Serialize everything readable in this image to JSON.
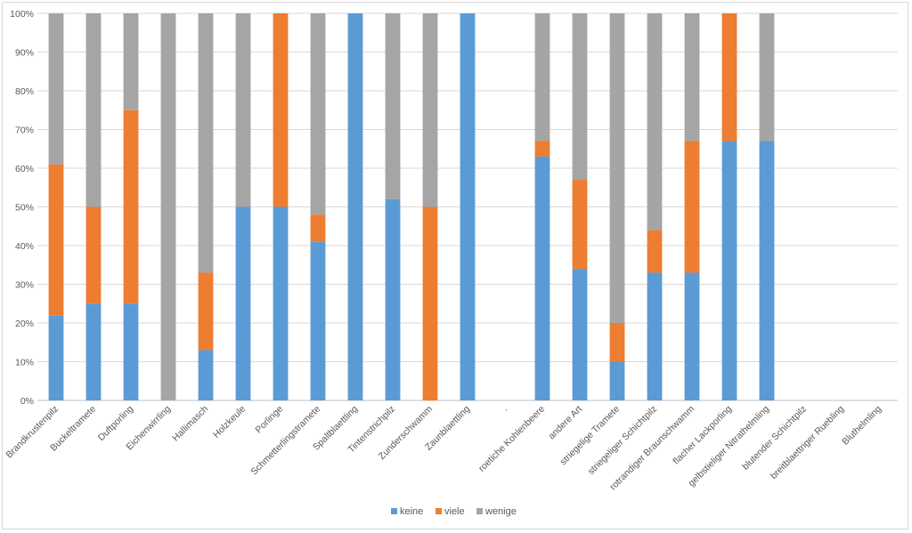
{
  "chart_data": {
    "type": "bar",
    "stacked": "percent",
    "categories": [
      "Brandkrustenpilz",
      "Buckeltramete",
      "Duftporling",
      "Eichenwirrling",
      "Hallimasch",
      "Holzkeule",
      "Porlinge",
      "Schmetterlingstramete",
      "Spaltblaettling",
      "Tintenstrichpilz",
      "Zunderschwamm",
      "Zaunblaettling",
      ".",
      "roetiche Kohlenbeere",
      "andere Art",
      "striegelige Tramete",
      "striegeliger Schichtpilz",
      "rotrandiger Braunschwamm",
      "flacher Lackporling",
      "gelbstieliger Nitrathelmling",
      "blutender Schichtpilz",
      "breitblaettriger Ruebling",
      "Bluthelmling"
    ],
    "series": [
      {
        "name": "keine",
        "color": "#5b9bd5",
        "values": [
          22,
          25,
          25,
          0,
          13,
          50,
          50,
          41,
          100,
          52,
          0,
          100,
          0,
          63,
          34,
          10,
          33,
          33,
          67,
          67,
          0,
          0,
          0
        ]
      },
      {
        "name": "viele",
        "color": "#ed7d31",
        "values": [
          39,
          25,
          50,
          0,
          20,
          0,
          50,
          7,
          0,
          0,
          50,
          0,
          0,
          4,
          23,
          10,
          11,
          34,
          33,
          0,
          0,
          0,
          0
        ]
      },
      {
        "name": "wenige",
        "color": "#a5a5a5",
        "values": [
          39,
          50,
          25,
          100,
          67,
          50,
          0,
          52,
          0,
          48,
          50,
          0,
          0,
          33,
          43,
          80,
          56,
          33,
          0,
          33,
          0,
          0,
          0
        ]
      }
    ],
    "y_ticks": [
      "0%",
      "10%",
      "20%",
      "30%",
      "40%",
      "50%",
      "60%",
      "70%",
      "80%",
      "90%",
      "100%"
    ],
    "ylim": [
      0,
      100
    ],
    "grid": true,
    "legend": "bottom"
  }
}
